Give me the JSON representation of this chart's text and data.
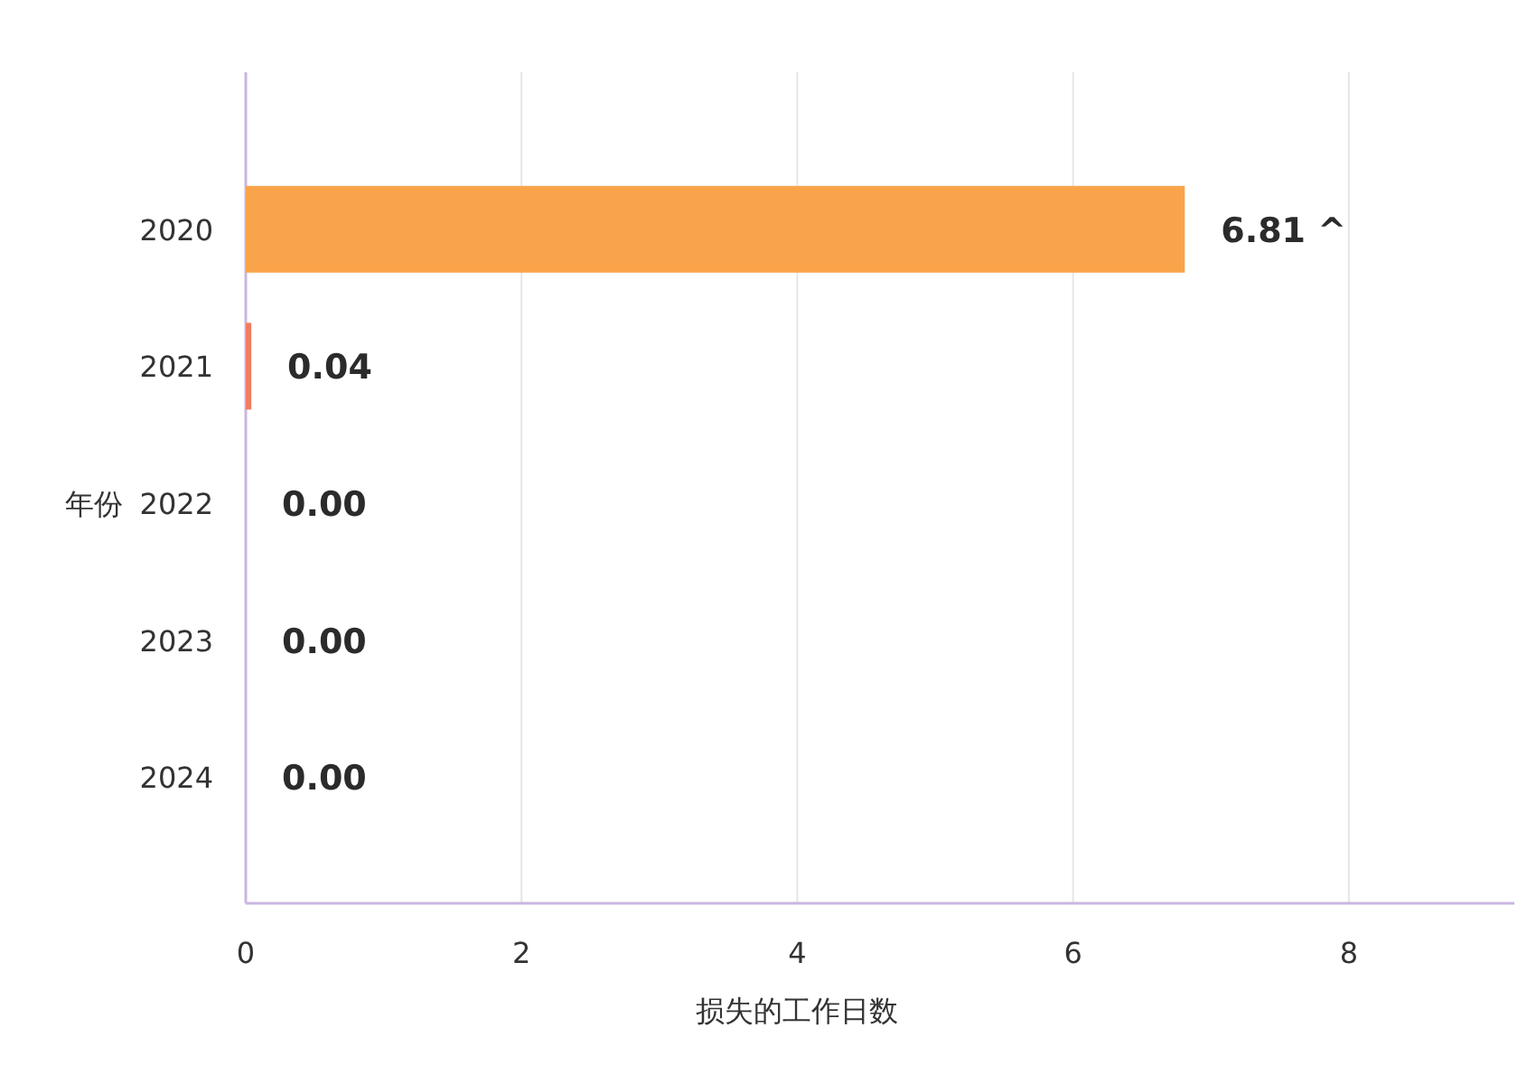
{
  "chart_data": {
    "type": "bar",
    "orientation": "horizontal",
    "categories": [
      "2020",
      "2021",
      "2022",
      "2023",
      "2024"
    ],
    "values": [
      6.81,
      0.04,
      0,
      0,
      0
    ],
    "colors": [
      "#f9a44a",
      "#f07c62",
      "#f07c62",
      "#f07c62",
      "#f07c62"
    ],
    "value_labels": [
      "6.81 ^",
      "0.04",
      "0.00",
      "0.00",
      "0.00"
    ],
    "xlabel": "损失的工作日数",
    "ylabel": "年份",
    "xlim": [
      0,
      9.2
    ],
    "xticks": [
      0,
      2,
      4,
      6,
      8
    ],
    "grid": "x"
  }
}
